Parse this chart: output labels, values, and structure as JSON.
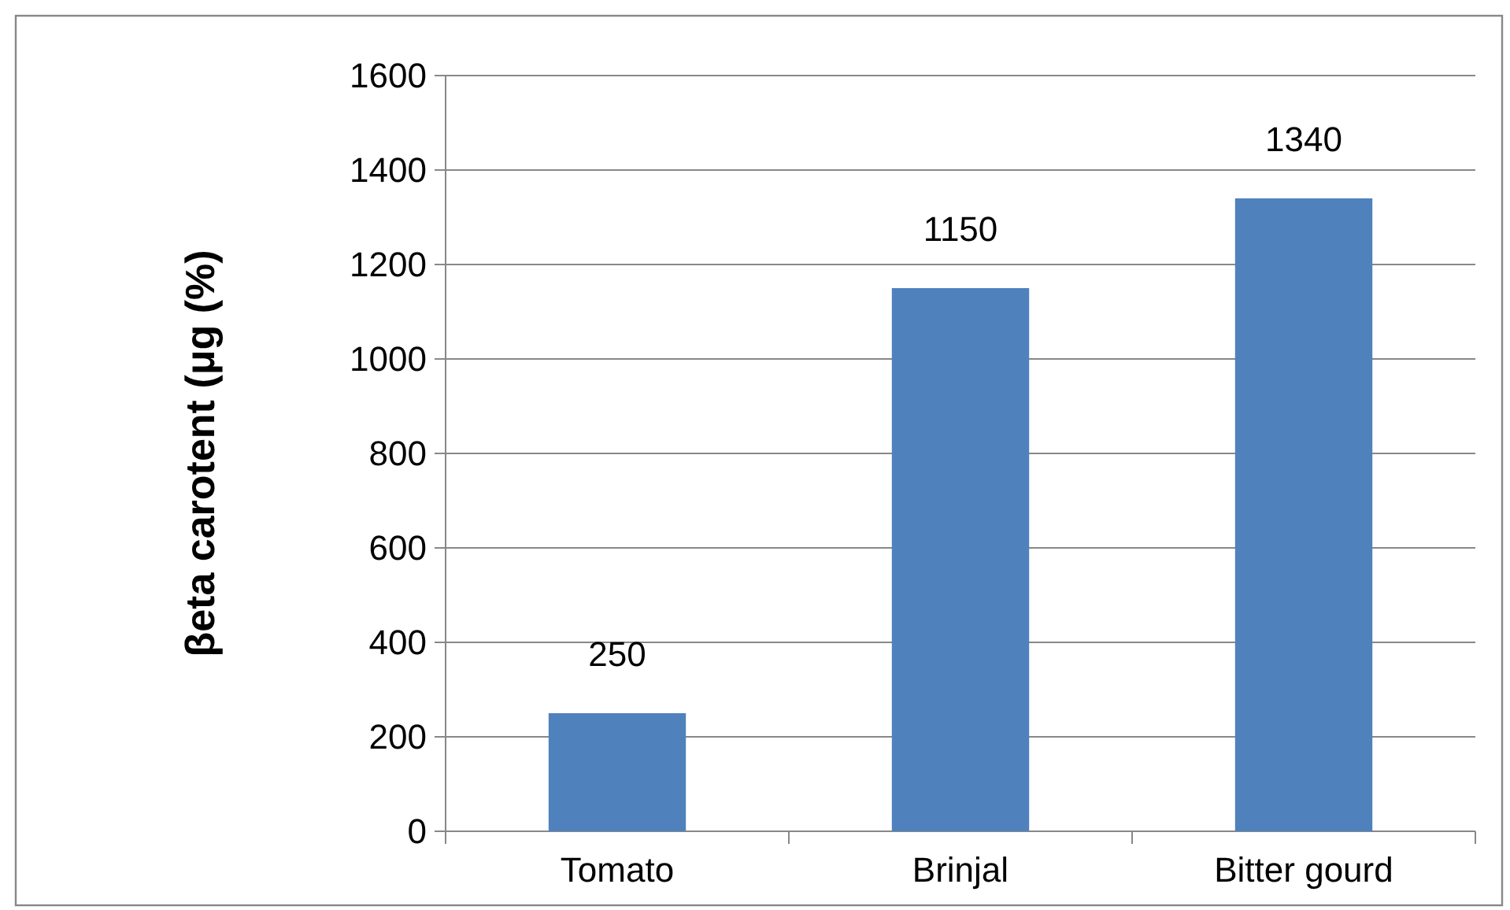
{
  "chart_data": {
    "type": "bar",
    "ylabel": "βeta carotent (μg (%)",
    "categories": [
      "Tomato",
      "Brinjal",
      "Bitter gourd"
    ],
    "values": [
      250,
      1150,
      1340
    ],
    "color": "#4f81bd",
    "ylim": [
      0,
      1600
    ],
    "yticks": [
      0,
      200,
      400,
      600,
      800,
      1000,
      1200,
      1400,
      1600
    ],
    "grid": "y",
    "data_labels": true
  }
}
